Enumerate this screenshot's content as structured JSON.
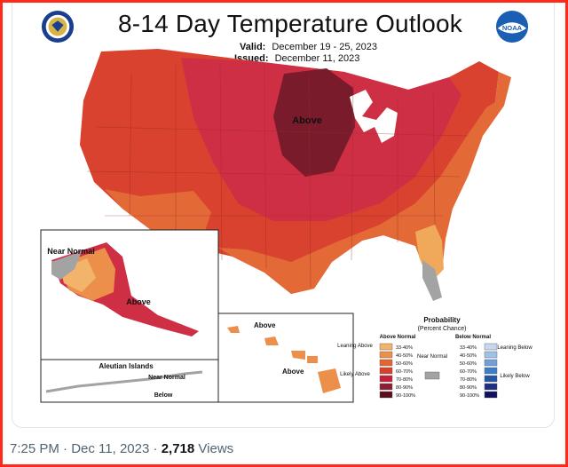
{
  "map": {
    "title": "8-14 Day Temperature Outlook",
    "valid_label": "Valid:",
    "valid_value": "December 19 - 25, 2023",
    "issued_label": "Issued:",
    "issued_value": "December 11, 2023",
    "labels": {
      "above_main": "Above",
      "near_normal_ak": "Near\nNormal",
      "above_ak": "Above",
      "above_hi_1": "Above",
      "above_hi_2": "Above",
      "aleutian": "Aleutian Islands",
      "near_normal_al": "Near\nNormal",
      "below_al": "Below"
    },
    "legend": {
      "title": "Probability",
      "subtitle": "(Percent Chance)",
      "above_header": "Above Normal",
      "below_header": "Below Normal",
      "leaning_above": "Leaning\nAbove",
      "likely_above": "Likely\nAbove",
      "near_normal": "Near\nNormal",
      "leaning_below": "Leaning\nBelow",
      "likely_below": "Likely\nBelow",
      "ranges": [
        "33-40%",
        "40-50%",
        "50-60%",
        "60-70%",
        "70-80%",
        "80-90%",
        "90-100%"
      ],
      "above_colors": [
        "#f2b36a",
        "#ec8f4a",
        "#e4662c",
        "#d9402a",
        "#c4203a",
        "#8e1f33",
        "#5a0f1c"
      ],
      "below_colors": [
        "#c6d7ef",
        "#9fc1e6",
        "#6fa0d9",
        "#3c7fc8",
        "#2456a6",
        "#1d2f84",
        "#120f5e"
      ],
      "near_color": "#a3a3a3"
    },
    "logo_noaa": "NOAA"
  },
  "footer": {
    "time": "7:25 PM",
    "sep1": "·",
    "date": "Dec 11, 2023",
    "sep2": "·",
    "views_count": "2,718",
    "views_label": "Views"
  }
}
